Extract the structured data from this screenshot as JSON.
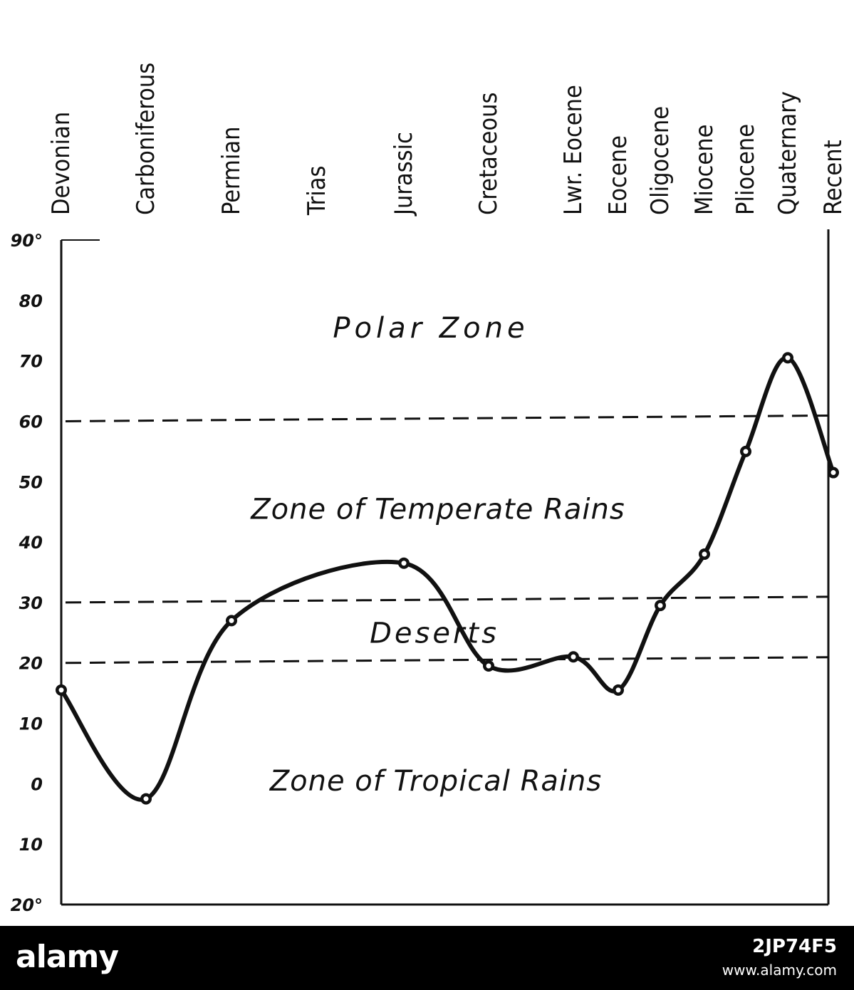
{
  "chart_data": {
    "type": "line",
    "title": "",
    "xlabel": "",
    "ylabel": "",
    "ylim": [
      -20,
      90
    ],
    "y_ticks": [
      90,
      80,
      70,
      60,
      50,
      40,
      30,
      20,
      10,
      0,
      -10,
      -20
    ],
    "y_tick_labels": [
      "90°",
      "80",
      "70",
      "60",
      "50",
      "40",
      "30",
      "20",
      "10",
      "0",
      "10",
      "20°"
    ],
    "categories": [
      "Devonian",
      "Carboniferous",
      "Permian",
      "Trias",
      "Jurassic",
      "Cretaceous",
      "Lwr. Eocene",
      "Eocene",
      "Oligocene",
      "Miocene",
      "Pliocene",
      "Quaternary",
      "Recent"
    ],
    "series": [
      {
        "name": "",
        "values": [
          15.5,
          -2.5,
          27,
          null,
          36.5,
          19.5,
          21,
          15.5,
          29.5,
          38,
          55,
          70.5,
          51.5
        ]
      }
    ],
    "reference_lines": [
      {
        "y": 60,
        "style": "dashed"
      },
      {
        "y": 30,
        "style": "dashed"
      },
      {
        "y": 20,
        "style": "dashed"
      }
    ],
    "zone_labels": [
      {
        "text": "Polar Zone",
        "y": 75.5
      },
      {
        "text": "Zone of Temperate Rains",
        "y": 45.5
      },
      {
        "text": "Deserts",
        "y": 25
      },
      {
        "text": "Zone of Tropical Rains",
        "y": 0.5
      }
    ],
    "grid": false,
    "legend": "none"
  },
  "footer": {
    "brand": "alamy",
    "image_id": "2JP74F5",
    "url": "www.alamy.com"
  }
}
